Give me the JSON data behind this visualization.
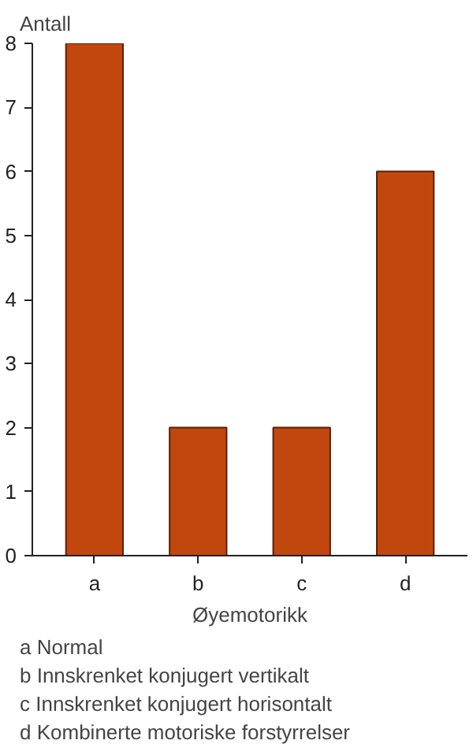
{
  "chart_data": {
    "type": "bar",
    "categories": [
      "a",
      "b",
      "c",
      "d"
    ],
    "values": [
      8,
      2,
      2,
      6
    ],
    "color": "#c2470f",
    "ylabel": "Antall",
    "xlabel": "Øyemotorikk",
    "ylim": [
      0,
      8
    ],
    "yticks": [
      0,
      1,
      2,
      3,
      4,
      5,
      6,
      7,
      8
    ],
    "grid": false,
    "annotations": [
      "a Normal",
      "b Innskrenket konjugert vertikalt",
      "c Innskrenket konjugert horisontalt",
      "d Kombinerte motoriske forstyrrelser"
    ]
  }
}
